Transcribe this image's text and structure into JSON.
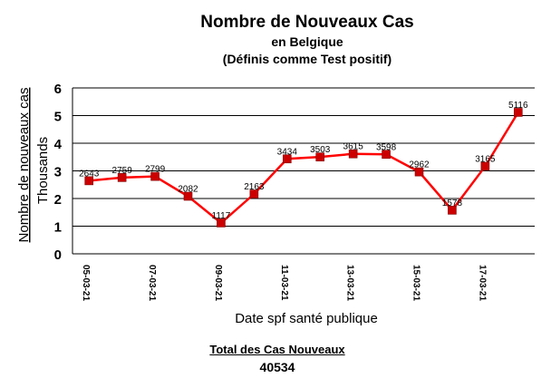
{
  "header": {
    "title": "Nombre de Nouveaux Cas",
    "subtitle1": "en Belgique",
    "subtitle2": "(Définis comme Test positif)"
  },
  "footer": {
    "total_label": "Total des Cas Nouveaux",
    "total_value": "40534"
  },
  "chart_data": {
    "type": "line",
    "title": "Nombre de Nouveaux Cas",
    "subtitle": "en Belgique (Définis comme Test positif)",
    "xlabel": "Date spf santé publique",
    "ylabel": "Nombre de nouveaux cas",
    "ylabel_unit": "Thousands",
    "ylim": [
      0,
      6
    ],
    "yticks": [
      0,
      1,
      2,
      3,
      4,
      5,
      6
    ],
    "grid": true,
    "legend": "none",
    "x": [
      "05-03-21",
      "06-03-21",
      "07-03-21",
      "08-03-21",
      "09-03-21",
      "10-03-21",
      "11-03-21",
      "12-03-21",
      "13-03-21",
      "14-03-21",
      "15-03-21",
      "16-03-21",
      "17-03-21",
      "18-03-21"
    ],
    "x_tick_labels": [
      "05-03-21",
      "",
      "07-03-21",
      "",
      "09-03-21",
      "",
      "11-03-21",
      "",
      "13-03-21",
      "",
      "15-03-21",
      "",
      "17-03-21",
      ""
    ],
    "values": [
      2643,
      2759,
      2799,
      2082,
      1117,
      2163,
      3434,
      3503,
      3615,
      3598,
      2962,
      1578,
      3165,
      5116
    ],
    "data_labels": [
      "2643",
      "2759",
      "2799",
      "2082",
      "1117",
      "2163",
      "3434",
      "3503",
      "3615",
      "3598",
      "2962",
      "1578",
      "3165",
      "5116"
    ],
    "line_color": "#ff0000",
    "marker_color": "#cc0000",
    "grid_color": "#000000"
  }
}
